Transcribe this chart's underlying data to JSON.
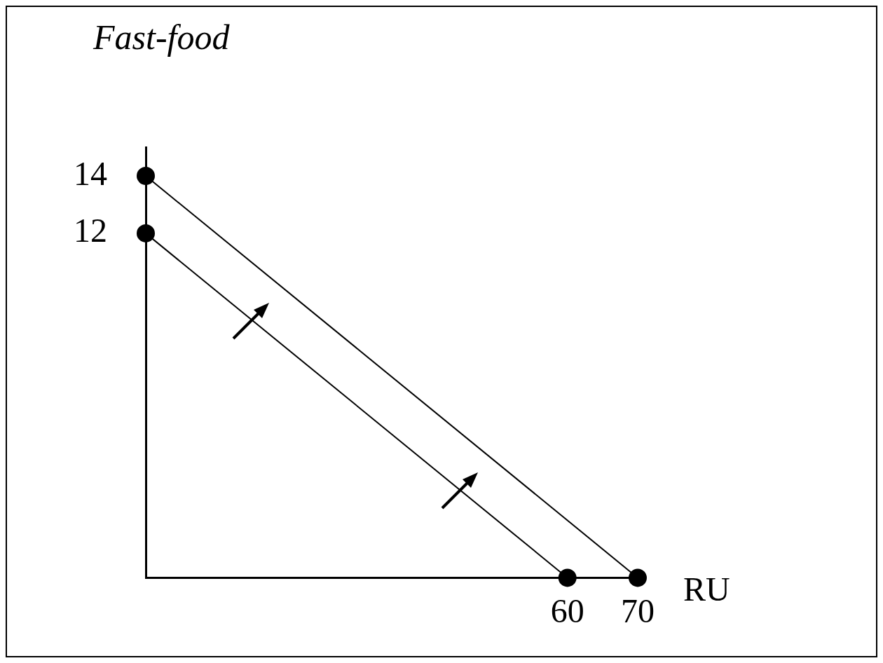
{
  "chart_data": {
    "type": "line",
    "xlabel": "RU",
    "ylabel": "Fast-food",
    "series": [
      {
        "x": [
          0,
          60
        ],
        "values": [
          12,
          0
        ],
        "color": "#000000"
      },
      {
        "x": [
          0,
          70
        ],
        "values": [
          14,
          0
        ],
        "color": "#000000"
      }
    ],
    "xlim": [
      0,
      71
    ],
    "ylim": [
      0,
      15
    ],
    "xticks": [
      60,
      70
    ],
    "yticks": [
      12,
      14
    ],
    "grid": false,
    "legend": false,
    "marker": "circle",
    "line_style": "solid"
  }
}
